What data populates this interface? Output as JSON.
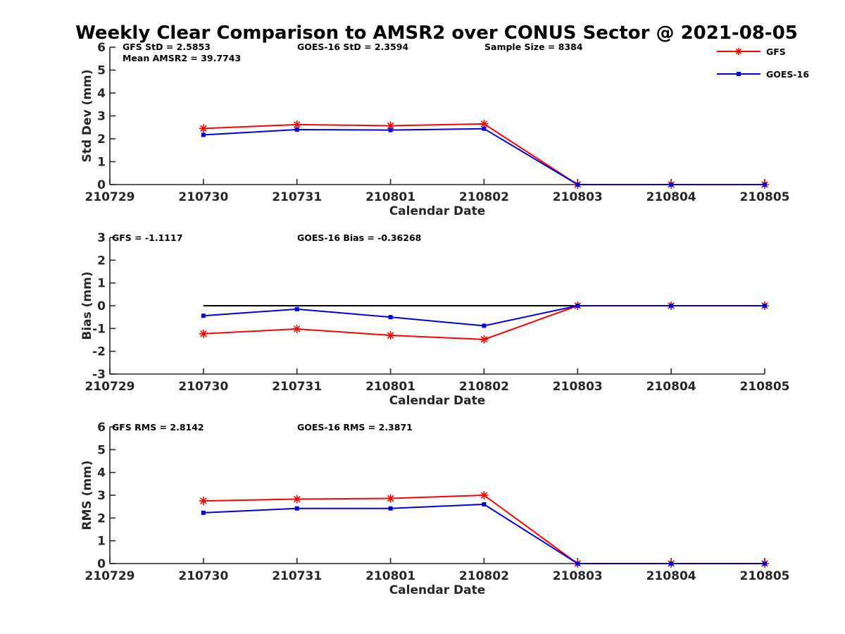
{
  "figure": {
    "title": "Weekly Clear Comparison to AMSR2 over CONUS Sector @ 2021-08-05"
  },
  "colors": {
    "gfs": "#ff0000",
    "goes": "#0000dd",
    "zero_line": "#000000"
  },
  "legend": {
    "placement": "top-right",
    "entries": [
      "GFS",
      "GOES-16"
    ]
  },
  "chart_data": [
    {
      "type": "line",
      "id": "std",
      "xlabel": "Calendar Date",
      "ylabel": "Std Dev (mm)",
      "x_ticks": [
        "210729",
        "210730",
        "210731",
        "210801",
        "210802",
        "210803",
        "210804",
        "210805"
      ],
      "ylim": [
        0,
        6
      ],
      "y_ticks": [
        0,
        1,
        2,
        3,
        4,
        5,
        6
      ],
      "annotations": {
        "gfs": "GFS StD = 2.5853",
        "goes": "GOES-16 StD = 2.3594",
        "sample": "Sample Size = 8384",
        "mean": "Mean AMSR2 = 39.7743"
      },
      "series": [
        {
          "name": "GFS",
          "x": [
            "210730",
            "210731",
            "210801",
            "210802",
            "210803",
            "210804",
            "210805"
          ],
          "values": [
            2.45,
            2.62,
            2.57,
            2.65,
            0,
            0,
            0
          ]
        },
        {
          "name": "GOES-16",
          "x": [
            "210730",
            "210731",
            "210801",
            "210802",
            "210803",
            "210804",
            "210805"
          ],
          "values": [
            2.17,
            2.4,
            2.38,
            2.44,
            0,
            0,
            0
          ]
        }
      ]
    },
    {
      "type": "line",
      "id": "bias",
      "xlabel": "Calendar Date",
      "ylabel": "Bias (mm)",
      "x_ticks": [
        "210729",
        "210730",
        "210731",
        "210801",
        "210802",
        "210803",
        "210804",
        "210805"
      ],
      "ylim": [
        -3,
        3
      ],
      "y_ticks": [
        -3,
        -2,
        -1,
        0,
        1,
        2,
        3
      ],
      "zero_line": true,
      "annotations": {
        "gfs": "GFS = -1.1117",
        "goes": "GOES-16 Bias  = -0.36268"
      },
      "series": [
        {
          "name": "GFS",
          "x": [
            "210730",
            "210731",
            "210801",
            "210802",
            "210803",
            "210804",
            "210805"
          ],
          "values": [
            -1.23,
            -1.02,
            -1.3,
            -1.48,
            0,
            0,
            0
          ]
        },
        {
          "name": "GOES-16",
          "x": [
            "210730",
            "210731",
            "210801",
            "210802",
            "210803",
            "210804",
            "210805"
          ],
          "values": [
            -0.44,
            -0.15,
            -0.5,
            -0.88,
            0,
            0,
            0
          ]
        }
      ]
    },
    {
      "type": "line",
      "id": "rms",
      "xlabel": "Calendar Date",
      "ylabel": "RMS (mm)",
      "x_ticks": [
        "210729",
        "210730",
        "210731",
        "210801",
        "210802",
        "210803",
        "210804",
        "210805"
      ],
      "ylim": [
        0,
        6
      ],
      "y_ticks": [
        0,
        1,
        2,
        3,
        4,
        5,
        6
      ],
      "annotations": {
        "gfs": "GFS RMS = 2.8142",
        "goes": "GOES-16 RMS = 2.3871"
      },
      "series": [
        {
          "name": "GFS",
          "x": [
            "210730",
            "210731",
            "210801",
            "210802",
            "210803",
            "210804",
            "210805"
          ],
          "values": [
            2.75,
            2.83,
            2.86,
            3.0,
            0,
            0,
            0
          ]
        },
        {
          "name": "GOES-16",
          "x": [
            "210730",
            "210731",
            "210801",
            "210802",
            "210803",
            "210804",
            "210805"
          ],
          "values": [
            2.23,
            2.42,
            2.42,
            2.6,
            0,
            0,
            0
          ]
        }
      ]
    }
  ]
}
